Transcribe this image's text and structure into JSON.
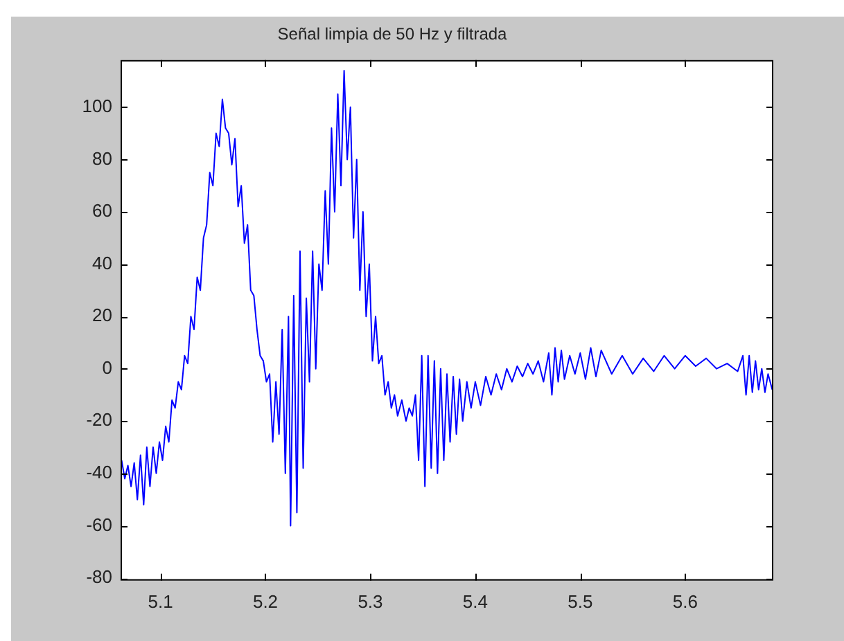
{
  "chart_data": {
    "type": "line",
    "title": "Señal limpia de 50 Hz y filtrada",
    "grid": false,
    "legend": false,
    "marker": "none",
    "line_style": "solid",
    "xlim": [
      5.062,
      5.684
    ],
    "xticks": [
      5.1,
      5.2,
      5.3,
      5.4,
      5.5,
      5.6
    ],
    "ylim": [
      -81,
      118
    ],
    "yticks": [
      -80,
      -60,
      -40,
      -20,
      0,
      20,
      40,
      60,
      80,
      100
    ],
    "series": [
      {
        "color": "#0000ff",
        "x": [
          5.063,
          5.066,
          5.069,
          5.072,
          5.075,
          5.078,
          5.081,
          5.084,
          5.087,
          5.09,
          5.093,
          5.096,
          5.099,
          5.102,
          5.105,
          5.108,
          5.111,
          5.114,
          5.117,
          5.12,
          5.123,
          5.126,
          5.129,
          5.132,
          5.135,
          5.138,
          5.141,
          5.144,
          5.147,
          5.15,
          5.153,
          5.156,
          5.159,
          5.162,
          5.165,
          5.168,
          5.171,
          5.174,
          5.177,
          5.18,
          5.183,
          5.186,
          5.189,
          5.192,
          5.195,
          5.198,
          5.201,
          5.204,
          5.207,
          5.21,
          5.213,
          5.216,
          5.219,
          5.222,
          5.224,
          5.227,
          5.23,
          5.233,
          5.236,
          5.239,
          5.242,
          5.245,
          5.248,
          5.251,
          5.254,
          5.257,
          5.26,
          5.263,
          5.266,
          5.269,
          5.272,
          5.275,
          5.278,
          5.281,
          5.284,
          5.287,
          5.29,
          5.293,
          5.296,
          5.299,
          5.302,
          5.305,
          5.308,
          5.311,
          5.314,
          5.317,
          5.32,
          5.323,
          5.326,
          5.33,
          5.334,
          5.337,
          5.34,
          5.343,
          5.346,
          5.349,
          5.352,
          5.355,
          5.358,
          5.361,
          5.364,
          5.367,
          5.37,
          5.373,
          5.376,
          5.379,
          5.382,
          5.385,
          5.388,
          5.392,
          5.396,
          5.4,
          5.405,
          5.41,
          5.415,
          5.42,
          5.425,
          5.43,
          5.435,
          5.44,
          5.445,
          5.45,
          5.455,
          5.46,
          5.465,
          5.47,
          5.473,
          5.476,
          5.479,
          5.482,
          5.485,
          5.49,
          5.495,
          5.5,
          5.505,
          5.51,
          5.515,
          5.52,
          5.53,
          5.54,
          5.55,
          5.56,
          5.57,
          5.58,
          5.59,
          5.6,
          5.61,
          5.62,
          5.63,
          5.64,
          5.65,
          5.655,
          5.658,
          5.661,
          5.664,
          5.667,
          5.67,
          5.673,
          5.676,
          5.679,
          5.683
        ],
        "values": [
          -35,
          -42,
          -37,
          -45,
          -36,
          -50,
          -33,
          -52,
          -30,
          -45,
          -30,
          -40,
          -28,
          -35,
          -22,
          -28,
          -12,
          -15,
          -5,
          -8,
          5,
          2,
          20,
          15,
          35,
          30,
          50,
          55,
          75,
          70,
          90,
          85,
          103,
          92,
          90,
          78,
          88,
          62,
          70,
          48,
          55,
          30,
          28,
          15,
          5,
          3,
          -5,
          -2,
          -28,
          -5,
          -25,
          15,
          -40,
          20,
          -60,
          28,
          -55,
          45,
          -38,
          27,
          -5,
          45,
          0,
          40,
          30,
          68,
          40,
          92,
          60,
          105,
          70,
          114,
          80,
          100,
          50,
          80,
          30,
          60,
          20,
          40,
          3,
          20,
          2,
          5,
          -10,
          -5,
          -15,
          -10,
          -18,
          -12,
          -20,
          -15,
          -18,
          -10,
          -35,
          5,
          -45,
          5,
          -38,
          3,
          -40,
          0,
          -35,
          -2,
          -28,
          -3,
          -25,
          -4,
          -20,
          -5,
          -15,
          -5,
          -14,
          -3,
          -10,
          -2,
          -8,
          0,
          -5,
          1,
          -3,
          2,
          -2,
          3,
          -5,
          6,
          -10,
          8,
          -5,
          7,
          -4,
          5,
          -2,
          6,
          -4,
          8,
          -3,
          7,
          -2,
          5,
          -2,
          4,
          -1,
          5,
          0,
          5,
          1,
          4,
          0,
          2,
          -1,
          5,
          -10,
          5,
          -9,
          3,
          -8,
          0,
          -9,
          -2,
          -8
        ]
      }
    ]
  }
}
